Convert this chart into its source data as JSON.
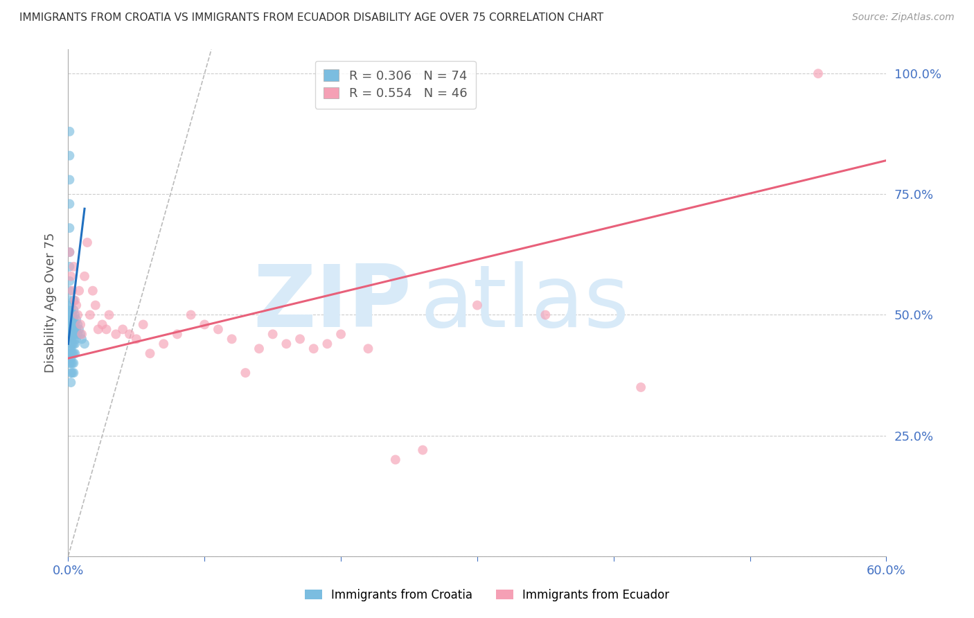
{
  "title": "IMMIGRANTS FROM CROATIA VS IMMIGRANTS FROM ECUADOR DISABILITY AGE OVER 75 CORRELATION CHART",
  "source": "Source: ZipAtlas.com",
  "ylabel_label": "Disability Age Over 75",
  "xlim": [
    0.0,
    0.6
  ],
  "ylim": [
    0.0,
    1.05
  ],
  "ytick_values": [
    0.0,
    0.25,
    0.5,
    0.75,
    1.0
  ],
  "xtick_values": [
    0.0,
    0.1,
    0.2,
    0.3,
    0.4,
    0.5,
    0.6
  ],
  "croatia_R": 0.306,
  "croatia_N": 74,
  "ecuador_R": 0.554,
  "ecuador_N": 46,
  "croatia_color": "#7bbde0",
  "ecuador_color": "#f5a0b5",
  "croatia_line_color": "#2070c0",
  "ecuador_line_color": "#e8607a",
  "axis_label_color": "#4472c4",
  "background_color": "#ffffff",
  "grid_color": "#cccccc",
  "watermark_color": "#d8eaf8",
  "croatia_x": [
    0.001,
    0.001,
    0.001,
    0.001,
    0.001,
    0.001,
    0.001,
    0.001,
    0.001,
    0.001,
    0.001,
    0.001,
    0.001,
    0.001,
    0.001,
    0.001,
    0.001,
    0.001,
    0.001,
    0.001,
    0.002,
    0.002,
    0.002,
    0.002,
    0.002,
    0.002,
    0.002,
    0.002,
    0.002,
    0.002,
    0.002,
    0.002,
    0.002,
    0.002,
    0.002,
    0.002,
    0.002,
    0.002,
    0.002,
    0.002,
    0.003,
    0.003,
    0.003,
    0.003,
    0.003,
    0.003,
    0.003,
    0.003,
    0.003,
    0.003,
    0.004,
    0.004,
    0.004,
    0.004,
    0.004,
    0.004,
    0.004,
    0.004,
    0.004,
    0.004,
    0.005,
    0.005,
    0.005,
    0.005,
    0.005,
    0.006,
    0.006,
    0.006,
    0.007,
    0.007,
    0.008,
    0.009,
    0.01,
    0.012
  ],
  "croatia_y": [
    0.88,
    0.83,
    0.78,
    0.73,
    0.68,
    0.63,
    0.6,
    0.57,
    0.55,
    0.53,
    0.51,
    0.5,
    0.49,
    0.48,
    0.47,
    0.46,
    0.45,
    0.43,
    0.42,
    0.4,
    0.52,
    0.51,
    0.5,
    0.5,
    0.49,
    0.49,
    0.48,
    0.48,
    0.47,
    0.47,
    0.46,
    0.46,
    0.45,
    0.44,
    0.43,
    0.42,
    0.41,
    0.4,
    0.38,
    0.36,
    0.5,
    0.49,
    0.48,
    0.47,
    0.46,
    0.45,
    0.44,
    0.42,
    0.4,
    0.38,
    0.53,
    0.51,
    0.49,
    0.48,
    0.47,
    0.46,
    0.44,
    0.42,
    0.4,
    0.38,
    0.5,
    0.48,
    0.46,
    0.44,
    0.42,
    0.49,
    0.47,
    0.45,
    0.48,
    0.46,
    0.47,
    0.46,
    0.45,
    0.44
  ],
  "ecuador_x": [
    0.001,
    0.002,
    0.003,
    0.004,
    0.005,
    0.006,
    0.007,
    0.008,
    0.009,
    0.01,
    0.012,
    0.014,
    0.016,
    0.018,
    0.02,
    0.022,
    0.025,
    0.028,
    0.03,
    0.035,
    0.04,
    0.045,
    0.05,
    0.055,
    0.06,
    0.07,
    0.08,
    0.09,
    0.1,
    0.11,
    0.12,
    0.13,
    0.14,
    0.15,
    0.16,
    0.17,
    0.18,
    0.19,
    0.2,
    0.22,
    0.24,
    0.26,
    0.3,
    0.35,
    0.42,
    0.55
  ],
  "ecuador_y": [
    0.63,
    0.58,
    0.55,
    0.6,
    0.53,
    0.52,
    0.5,
    0.55,
    0.48,
    0.46,
    0.58,
    0.65,
    0.5,
    0.55,
    0.52,
    0.47,
    0.48,
    0.47,
    0.5,
    0.46,
    0.47,
    0.46,
    0.45,
    0.48,
    0.42,
    0.44,
    0.46,
    0.5,
    0.48,
    0.47,
    0.45,
    0.38,
    0.43,
    0.46,
    0.44,
    0.45,
    0.43,
    0.44,
    0.46,
    0.43,
    0.2,
    0.22,
    0.52,
    0.5,
    0.35,
    1.0
  ],
  "croatia_trendline_x": [
    0.0,
    0.012
  ],
  "croatia_trendline_y": [
    0.44,
    0.72
  ],
  "ecuador_trendline_x": [
    0.0,
    0.6
  ],
  "ecuador_trendline_y": [
    0.41,
    0.82
  ],
  "diag_line_x": [
    0.0,
    0.105
  ],
  "diag_line_y": [
    0.0,
    1.05
  ]
}
